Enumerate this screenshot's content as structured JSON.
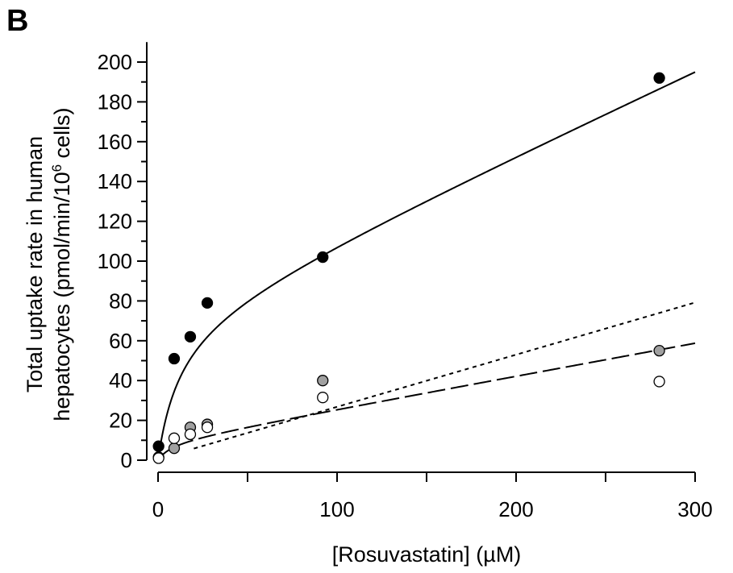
{
  "chart_data": {
    "type": "scatter",
    "panel_label": "B",
    "xlabel": "[Rosuvastatin] (µM)",
    "ylabel_line1": "Total uptake rate in human",
    "ylabel_line2_prefix": "hepatocytes (pmol/min/10",
    "ylabel_line2_sup": "6",
    "ylabel_line2_suffix": " cells)",
    "xlim": [
      0,
      300
    ],
    "ylim": [
      0,
      210
    ],
    "x_ticks": [
      0,
      100,
      200,
      300
    ],
    "x_minor_ticks": [
      50,
      150,
      250
    ],
    "y_ticks": [
      0,
      20,
      40,
      60,
      80,
      100,
      120,
      140,
      160,
      180,
      200
    ],
    "y_minor_ticks": [
      10,
      30,
      50,
      70,
      90,
      110,
      130,
      150,
      170,
      190
    ],
    "grid": false,
    "series": [
      {
        "marker": "filled-black",
        "color": "#000000",
        "fill": "#000000",
        "points": [
          [
            0.3,
            7
          ],
          [
            9,
            51
          ],
          [
            18,
            62
          ],
          [
            27.5,
            79
          ],
          [
            92,
            102
          ],
          [
            280,
            192
          ]
        ],
        "fit": {
          "style": "solid",
          "model": "michaelis-menten-plus-linear",
          "vmax": 73.4,
          "km": 12.5,
          "pdif": 0.415
        }
      },
      {
        "marker": "gray",
        "color": "#000000",
        "fill": "#a0a0a0",
        "points": [
          [
            0.3,
            1.5
          ],
          [
            9,
            6
          ],
          [
            18,
            16.5
          ],
          [
            27.5,
            18
          ],
          [
            92,
            40
          ],
          [
            280,
            55
          ]
        ],
        "fit": {
          "style": "long-dash",
          "model": "michaelis-menten-plus-linear",
          "vmax": 9.5,
          "km": 8,
          "pdif": 0.165
        }
      },
      {
        "marker": "open",
        "color": "#000000",
        "fill": "#ffffff",
        "points": [
          [
            0.3,
            1
          ],
          [
            9,
            11
          ],
          [
            18,
            13
          ],
          [
            27.5,
            16.5
          ],
          [
            92,
            31.5
          ],
          [
            280,
            39.5
          ]
        ],
        "fit": {
          "style": "short-dash",
          "model": "linear",
          "slope": 0.262,
          "intercept": 0.6,
          "x_start": 20
        }
      }
    ]
  }
}
